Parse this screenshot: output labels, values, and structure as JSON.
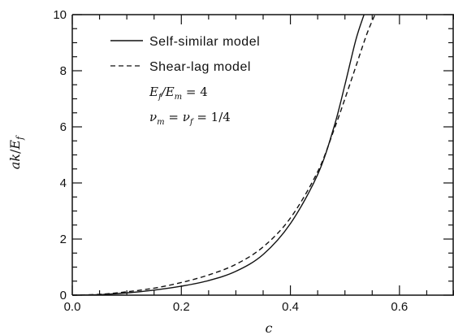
{
  "chart_data": {
    "type": "line",
    "title": "",
    "xlabel": "c",
    "ylabel": "ak/E_f",
    "xlim": [
      0.0,
      0.7
    ],
    "ylim": [
      0,
      10
    ],
    "x_ticks": [
      0.0,
      0.2,
      0.4,
      0.6
    ],
    "x_tick_labels": [
      "0.0",
      "0.2",
      "0.4",
      "0.6"
    ],
    "y_ticks": [
      0,
      2,
      4,
      6,
      8,
      10
    ],
    "y_tick_labels": [
      "0",
      "2",
      "4",
      "6",
      "8",
      "10"
    ],
    "grid": false,
    "legend_position": "top-left",
    "series": [
      {
        "name": "Self-similar model",
        "style": "solid",
        "x": [
          0.0,
          0.05,
          0.1,
          0.15,
          0.2,
          0.25,
          0.3,
          0.35,
          0.4,
          0.45,
          0.48,
          0.5,
          0.52,
          0.535
        ],
        "y": [
          0.0,
          0.02,
          0.08,
          0.18,
          0.32,
          0.52,
          0.85,
          1.45,
          2.55,
          4.3,
          6.0,
          7.5,
          9.1,
          10.0
        ]
      },
      {
        "name": "Shear-lag model",
        "style": "dashed",
        "x": [
          0.0,
          0.05,
          0.1,
          0.15,
          0.2,
          0.25,
          0.3,
          0.35,
          0.4,
          0.45,
          0.48,
          0.5,
          0.52,
          0.54,
          0.555
        ],
        "y": [
          0.0,
          0.03,
          0.12,
          0.25,
          0.45,
          0.72,
          1.1,
          1.72,
          2.75,
          4.4,
          5.9,
          7.0,
          8.15,
          9.3,
          10.0
        ]
      }
    ],
    "annotations": [
      "E_f/E_m = 4",
      "ν_m = ν_f = 1/4"
    ]
  },
  "labels": {
    "ylabel_a": "a",
    "ylabel_k": "k",
    "ylabel_slash": "/",
    "ylabel_E": "E",
    "ylabel_sub": "f",
    "xlabel": "c",
    "param1_E1": "E",
    "param1_sub1": "f",
    "param1_slash": "/",
    "param1_E2": "E",
    "param1_sub2": "m",
    "param1_val": " = 4",
    "param2_nu1": "ν",
    "param2_sub1": "m",
    "param2_eq": " = ",
    "param2_nu2": "ν",
    "param2_sub2": "f",
    "param2_val": " = 1/4"
  },
  "colors": {
    "line": "#111111",
    "axis": "#111111",
    "background": "#ffffff"
  }
}
